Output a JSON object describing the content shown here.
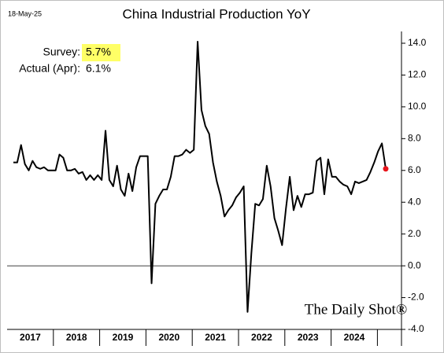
{
  "chart_data": {
    "type": "line",
    "title": "China Industrial Production YoY",
    "date": "18-May-25",
    "annotations": {
      "survey_label": "Survey:",
      "survey_value": "5.7%",
      "actual_label": "Actual (Apr):",
      "actual_value": "6.1%"
    },
    "watermark": "The Daily Shot®",
    "x_labels": [
      "2017",
      "2018",
      "2019",
      "2020",
      "2021",
      "2022",
      "2023",
      "2024"
    ],
    "series": [
      {
        "color": "#000000",
        "last_point_color": "#e8141b",
        "values": [
          6.5,
          6.5,
          7.6,
          6.4,
          6.0,
          6.6,
          6.2,
          6.1,
          6.2,
          6.0,
          6.0,
          6.0,
          7.0,
          6.8,
          6.0,
          6.0,
          6.1,
          5.8,
          5.9,
          5.4,
          5.7,
          5.4,
          5.7,
          5.4,
          8.5,
          5.4,
          5.0,
          6.3,
          4.8,
          4.4,
          5.8,
          4.7,
          6.2,
          6.9,
          6.9,
          6.9,
          -1.1,
          3.9,
          4.4,
          4.8,
          4.8,
          5.6,
          6.9,
          6.9,
          7.0,
          7.3,
          7.1,
          7.3,
          14.1,
          9.8,
          8.8,
          8.3,
          6.5,
          5.3,
          4.4,
          3.1,
          3.5,
          3.8,
          4.3,
          4.6,
          5.0,
          -2.9,
          0.8,
          3.9,
          3.8,
          4.2,
          6.3,
          5.0,
          3.0,
          2.2,
          1.3,
          3.6,
          5.6,
          3.5,
          4.4,
          3.7,
          4.5,
          4.5,
          4.6,
          6.6,
          6.8,
          4.5,
          6.7,
          5.6,
          5.6,
          5.3,
          5.1,
          5.0,
          4.5,
          5.3,
          5.2,
          5.3,
          5.4,
          5.9,
          6.5,
          7.2,
          7.7,
          6.1
        ]
      }
    ],
    "ylim": [
      -4,
      14
    ],
    "yticks": [
      {
        "value": -4,
        "label": "-4.0"
      },
      {
        "value": -2,
        "label": "-2.0"
      },
      {
        "value": 0,
        "label": "0.0"
      },
      {
        "value": 2,
        "label": "2.0"
      },
      {
        "value": 4,
        "label": "4.0"
      },
      {
        "value": 6,
        "label": "6.0"
      },
      {
        "value": 8,
        "label": "8.0"
      },
      {
        "value": 10,
        "label": "10.0"
      },
      {
        "value": 12,
        "label": "12.0"
      },
      {
        "value": 14,
        "label": "14.0"
      }
    ],
    "zero_line": true
  }
}
